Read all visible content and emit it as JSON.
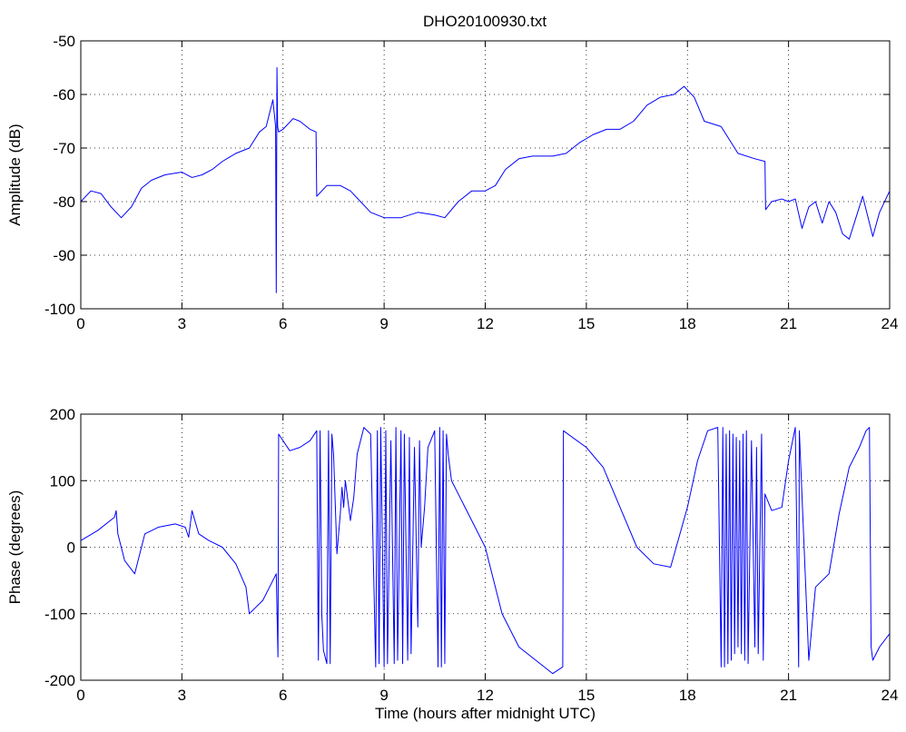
{
  "figure": {
    "title": "DHO20100930.txt"
  },
  "colors": {
    "line": "#0000ff",
    "axes": "#000000",
    "background": "#ffffff"
  },
  "chart_data": [
    {
      "type": "line",
      "title": "DHO20100930.txt",
      "xlabel": "",
      "ylabel": "Amplitude (dB)",
      "xlim": [
        0,
        24
      ],
      "ylim": [
        -100,
        -50
      ],
      "xticks": [
        0,
        3,
        6,
        9,
        12,
        15,
        18,
        21,
        24
      ],
      "yticks": [
        -100,
        -90,
        -80,
        -70,
        -60,
        -50
      ],
      "grid": true,
      "series": [
        {
          "x": [
            0,
            0.3,
            0.6,
            0.9,
            1.2,
            1.5,
            1.8,
            2.1,
            2.5,
            3.0,
            3.3,
            3.6,
            3.9,
            4.2,
            4.6,
            5.0,
            5.3,
            5.5,
            5.7,
            5.78,
            5.8,
            5.82,
            5.84,
            5.87,
            6.0,
            6.3,
            6.5,
            6.8,
            6.98,
            7.0,
            7.3,
            7.7,
            8.0,
            8.3,
            8.6,
            9.0,
            9.5,
            10.0,
            10.5,
            10.8,
            11.2,
            11.6,
            12.0,
            12.3,
            12.6,
            13.0,
            13.4,
            14.0,
            14.4,
            14.8,
            15.2,
            15.6,
            16.0,
            16.4,
            16.8,
            17.2,
            17.6,
            17.9,
            18.2,
            18.5,
            19.0,
            19.5,
            20.0,
            20.3,
            20.32,
            20.5,
            20.8,
            21.0,
            21.2,
            21.4,
            21.6,
            21.8,
            22.0,
            22.2,
            22.4,
            22.6,
            22.8,
            23.0,
            23.2,
            23.5,
            23.7,
            24.0
          ],
          "y": [
            -80,
            -78,
            -78.5,
            -81,
            -83,
            -81,
            -77.5,
            -76,
            -75,
            -74.5,
            -75.5,
            -75,
            -74,
            -72.5,
            -71,
            -70,
            -67,
            -66,
            -61,
            -66,
            -97,
            -55,
            -66,
            -67,
            -66.5,
            -64.5,
            -65,
            -66.5,
            -67,
            -79,
            -77,
            -77,
            -78,
            -80,
            -82,
            -83,
            -83,
            -82,
            -82.5,
            -83,
            -80,
            -78,
            -78,
            -77,
            -74,
            -72,
            -71.5,
            -71.5,
            -71,
            -69,
            -67.5,
            -66.5,
            -66.5,
            -65,
            -62,
            -60.5,
            -60,
            -58.5,
            -60.5,
            -65,
            -66,
            -71,
            -72,
            -72.5,
            -81.5,
            -80,
            -79.5,
            -80,
            -79.5,
            -85,
            -81,
            -80,
            -84,
            -80,
            -82,
            -86,
            -87,
            -83,
            -79,
            -86.5,
            -82,
            -78
          ]
        }
      ]
    },
    {
      "type": "line",
      "title": "",
      "xlabel": "Time (hours after midnight UTC)",
      "ylabel": "Phase (degrees)",
      "xlim": [
        0,
        24
      ],
      "ylim": [
        -200,
        200
      ],
      "xticks": [
        0,
        3,
        6,
        9,
        12,
        15,
        18,
        21,
        24
      ],
      "yticks": [
        -200,
        -100,
        0,
        100,
        200
      ],
      "grid": true,
      "series": [
        {
          "x": [
            0,
            0.5,
            1.0,
            1.05,
            1.1,
            1.3,
            1.6,
            1.8,
            1.9,
            2.3,
            2.8,
            3.1,
            3.2,
            3.3,
            3.5,
            3.8,
            4.2,
            4.6,
            4.9,
            5.0,
            5.2,
            5.4,
            5.6,
            5.8,
            5.85,
            5.87,
            6.2,
            6.5,
            6.8,
            7.0,
            7.05,
            7.1,
            7.15,
            7.2,
            7.3,
            7.35,
            7.4,
            7.45,
            7.5,
            7.6,
            7.7,
            7.75,
            7.8,
            7.85,
            8.0,
            8.1,
            8.2,
            8.4,
            8.6,
            8.75,
            8.8,
            8.85,
            8.9,
            9.0,
            9.05,
            9.1,
            9.2,
            9.3,
            9.35,
            9.4,
            9.5,
            9.55,
            9.6,
            9.7,
            9.75,
            9.8,
            9.9,
            10.0,
            10.05,
            10.1,
            10.2,
            10.3,
            10.5,
            10.6,
            10.65,
            10.7,
            10.75,
            10.8,
            10.85,
            10.9,
            11.0,
            11.5,
            12.0,
            12.5,
            13.0,
            13.5,
            14.0,
            14.3,
            14.32,
            15.0,
            15.5,
            16.0,
            16.5,
            17.0,
            17.5,
            18.0,
            18.3,
            18.6,
            18.9,
            19.0,
            19.05,
            19.1,
            19.15,
            19.2,
            19.25,
            19.3,
            19.35,
            19.4,
            19.45,
            19.5,
            19.55,
            19.6,
            19.65,
            19.7,
            19.75,
            19.8,
            19.9,
            20.0,
            20.05,
            20.1,
            20.2,
            20.25,
            20.3,
            20.5,
            20.8,
            21.0,
            21.2,
            21.3,
            21.32,
            21.6,
            21.8,
            22.2,
            22.5,
            22.8,
            23.1,
            23.3,
            23.4,
            23.45,
            23.5,
            23.7,
            24.0
          ],
          "y": [
            10,
            25,
            45,
            55,
            20,
            -20,
            -40,
            0,
            20,
            30,
            35,
            30,
            15,
            55,
            20,
            10,
            0,
            -25,
            -60,
            -100,
            -90,
            -80,
            -60,
            -40,
            -165,
            170,
            145,
            150,
            160,
            175,
            -170,
            175,
            -100,
            -155,
            -175,
            175,
            -175,
            170,
            140,
            -10,
            50,
            90,
            60,
            100,
            40,
            75,
            140,
            180,
            170,
            -180,
            175,
            -175,
            180,
            -180,
            175,
            -175,
            160,
            -175,
            180,
            -170,
            175,
            -175,
            170,
            -170,
            165,
            -160,
            150,
            -120,
            160,
            0,
            60,
            150,
            175,
            -180,
            180,
            -180,
            175,
            -175,
            170,
            140,
            100,
            50,
            0,
            -100,
            -150,
            -170,
            -190,
            -180,
            175,
            150,
            120,
            60,
            0,
            -25,
            -30,
            60,
            130,
            175,
            180,
            -180,
            180,
            -180,
            170,
            -175,
            175,
            -170,
            170,
            -160,
            165,
            -150,
            160,
            -160,
            170,
            -170,
            175,
            -175,
            160,
            -150,
            150,
            -160,
            170,
            -170,
            80,
            55,
            60,
            130,
            180,
            -180,
            175,
            -170,
            -60,
            -40,
            50,
            120,
            150,
            175,
            180,
            -150,
            -170,
            -150,
            -130
          ]
        }
      ]
    }
  ]
}
